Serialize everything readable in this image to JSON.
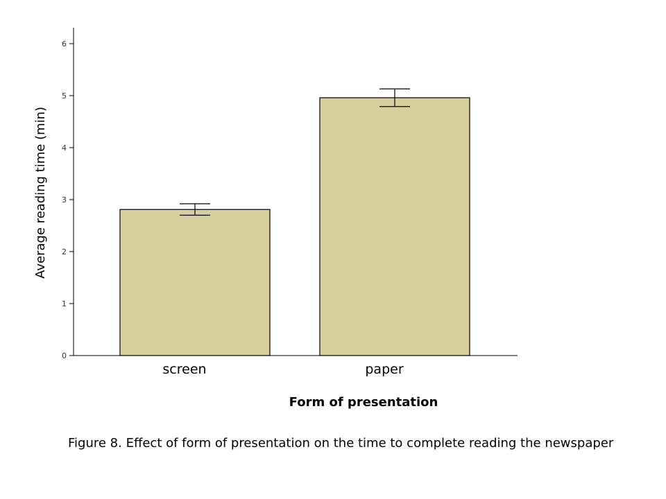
{
  "chart_data": {
    "type": "bar",
    "categories": [
      "screen",
      "paper"
    ],
    "values": [
      2.81,
      4.96
    ],
    "error_bars": [
      [
        2.7,
        2.92
      ],
      [
        4.79,
        5.13
      ]
    ],
    "xlabel": "Form of presentation",
    "ylabel": "Average reading time (min)",
    "ylim": [
      0,
      6
    ],
    "yticks": [
      0,
      1,
      2,
      3,
      4,
      5,
      6
    ],
    "bar_color": "#d4cf9b",
    "grid": false
  },
  "caption": "Figure 8. Effect of form of presentation on the time to complete reading the newspaper"
}
